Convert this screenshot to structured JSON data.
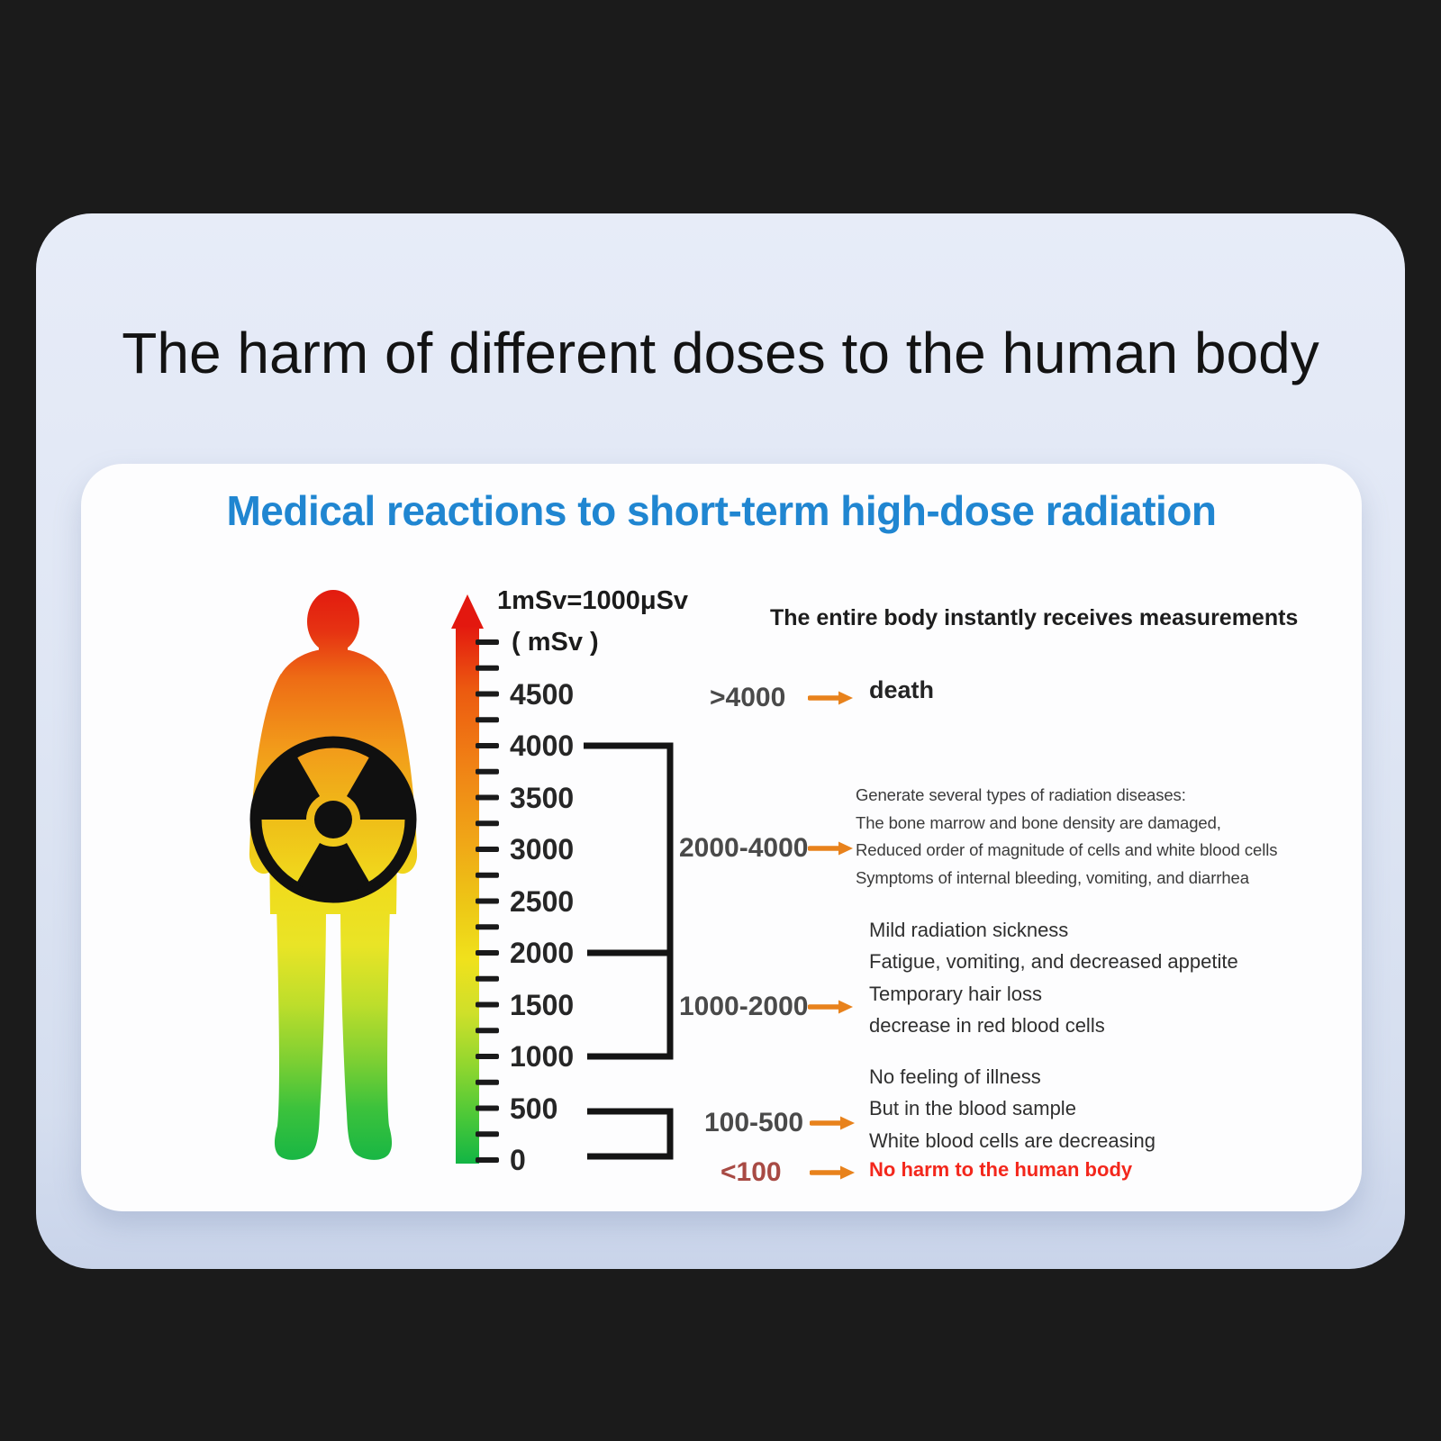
{
  "main_title": "The harm of different doses to the human body",
  "subtitle": "Medical reactions to short-term high-dose radiation",
  "scale": {
    "equation": "1mSv=1000μSv",
    "unit_label": "( mSv )",
    "tick_labels": [
      4500,
      4000,
      3500,
      3000,
      2500,
      2000,
      1500,
      1000,
      500,
      0
    ],
    "minor_tick_step_mSv": 250,
    "max_mSv": 5000
  },
  "right_panel": {
    "header": "The entire body instantly receives measurements"
  },
  "rows": [
    {
      "range": ">4000",
      "lines": [
        "death"
      ]
    },
    {
      "range": "2000-4000",
      "lines": [
        "Generate several types of radiation diseases:",
        "The bone marrow and bone density are damaged,",
        "Reduced order of magnitude of cells and white blood cells",
        "Symptoms of internal bleeding, vomiting, and diarrhea"
      ]
    },
    {
      "range": "1000-2000",
      "lines": [
        "Mild radiation sickness",
        "Fatigue, vomiting, and decreased appetite",
        "Temporary hair loss",
        "decrease in red blood cells"
      ]
    },
    {
      "range": "100-500",
      "lines": [
        "No feeling of illness",
        "But in the blood sample",
        "White blood cells are decreasing"
      ]
    },
    {
      "range": "<100",
      "lines": [
        "No harm to the human body"
      ]
    }
  ],
  "colors": {
    "accent_blue": "#2086d1",
    "arrow_orange": "#e8821c",
    "danger_red": "#f3271c",
    "muted_red_range": "#a84a44",
    "scale_top_red": "#e3180f",
    "scale_bottom_green": "#14b545"
  },
  "icons": {
    "figure": "human-body-figure",
    "symbol": "radiation-trefoil-icon",
    "scale_pointer": "up-arrow-icon"
  },
  "chart_data": {
    "type": "table",
    "title": "Medical reactions to short-term high-dose radiation",
    "unit": "mSv",
    "axis_ticks_mSv": [
      0,
      500,
      1000,
      1500,
      2000,
      2500,
      3000,
      3500,
      4000,
      4500
    ],
    "rows": [
      {
        "dose": ">4000",
        "effect": "death"
      },
      {
        "dose": "2000-4000",
        "effect": "Generate several types of radiation diseases: The bone marrow and bone density are damaged, Reduced order of magnitude of cells and white blood cells, Symptoms of internal bleeding, vomiting, and diarrhea"
      },
      {
        "dose": "1000-2000",
        "effect": "Mild radiation sickness; Fatigue, vomiting, and decreased appetite; Temporary hair loss; decrease in red blood cells"
      },
      {
        "dose": "100-500",
        "effect": "No feeling of illness, But in the blood sample White blood cells are decreasing"
      },
      {
        "dose": "<100",
        "effect": "No harm to the human body"
      }
    ]
  }
}
